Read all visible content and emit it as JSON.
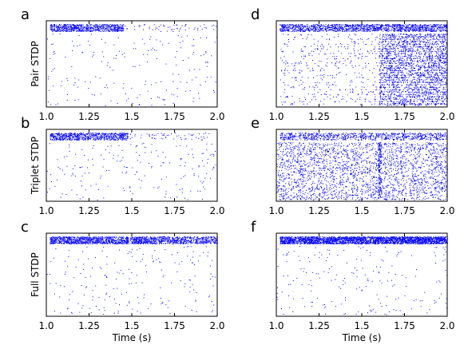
{
  "chart_data": [
    {
      "type": "scatter",
      "panel_label": "a",
      "ylabel": "Pair STDP",
      "xlabel": "",
      "xlim": [
        1.0,
        2.0
      ],
      "xticks": [
        "1.0",
        "1.25",
        "1.5",
        "1.75",
        "2.0"
      ],
      "pattern": "band-then-sparse",
      "band": [
        1.0,
        1.45
      ],
      "bg_density": "sparse",
      "color": "#0000ff"
    },
    {
      "type": "scatter",
      "panel_label": "b",
      "ylabel": "Triplet STDP",
      "xlabel": "",
      "xlim": [
        1.0,
        2.0
      ],
      "xticks": [
        "1.0",
        "1.25",
        "1.5",
        "1.75",
        "2.0"
      ],
      "pattern": "band-then-sparse",
      "band": [
        1.0,
        1.48
      ],
      "bg_density": "sparse",
      "color": "#0000ff"
    },
    {
      "type": "scatter",
      "panel_label": "c",
      "ylabel": "Full STDP",
      "xlabel": "Time (s)",
      "xlim": [
        1.0,
        2.0
      ],
      "xticks": [
        "1.0",
        "1.25",
        "1.5",
        "1.75",
        "2.0"
      ],
      "pattern": "full-band",
      "band": [
        1.0,
        2.0
      ],
      "bg_density": "sparse",
      "color": "#0000ff"
    },
    {
      "type": "scatter",
      "panel_label": "d",
      "ylabel": "",
      "xlabel": "",
      "xlim": [
        1.0,
        2.0
      ],
      "xticks": [
        "1.0",
        "1.25",
        "1.5",
        "1.75",
        "2.0"
      ],
      "pattern": "escalating",
      "band": [
        1.0,
        2.0
      ],
      "bg_density": "dense",
      "color": "#0000ff"
    },
    {
      "type": "scatter",
      "panel_label": "e",
      "ylabel": "",
      "xlabel": "",
      "xlim": [
        1.0,
        2.0
      ],
      "xticks": [
        "1.0",
        "1.25",
        "1.5",
        "1.75",
        "2.0"
      ],
      "pattern": "band-then-dense",
      "band": [
        1.0,
        2.0
      ],
      "bg_density": "dense",
      "color": "#0000ff"
    },
    {
      "type": "scatter",
      "panel_label": "f",
      "ylabel": "",
      "xlabel": "Time (s)",
      "xlim": [
        1.0,
        2.0
      ],
      "xticks": [
        "1.0",
        "1.25",
        "1.5",
        "1.75",
        "2.0"
      ],
      "pattern": "solid-band",
      "band": [
        1.0,
        2.0
      ],
      "bg_density": "sparse",
      "color": "#0000ff"
    }
  ]
}
